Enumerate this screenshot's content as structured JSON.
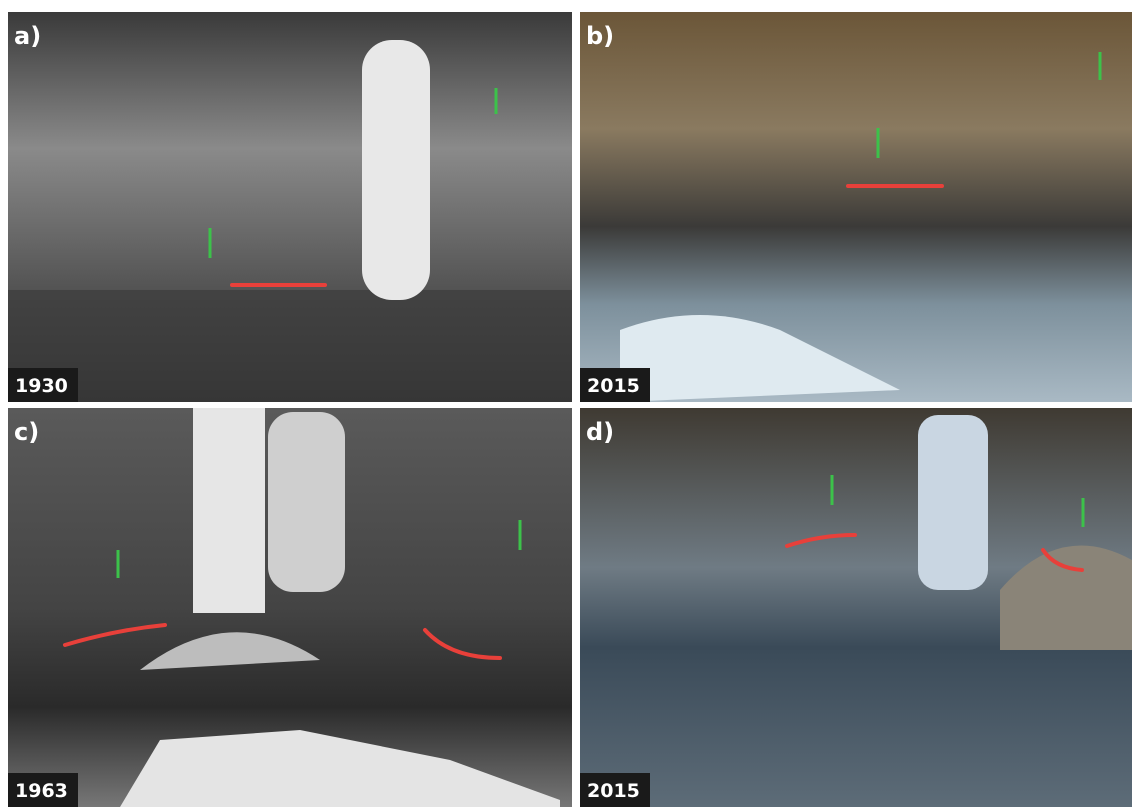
{
  "panels": [
    {
      "label": "a)",
      "year": "1930"
    },
    {
      "label": "b)",
      "year": "2015"
    },
    {
      "label": "c)",
      "year": "1963"
    },
    {
      "label": "d)",
      "year": "2015"
    }
  ]
}
